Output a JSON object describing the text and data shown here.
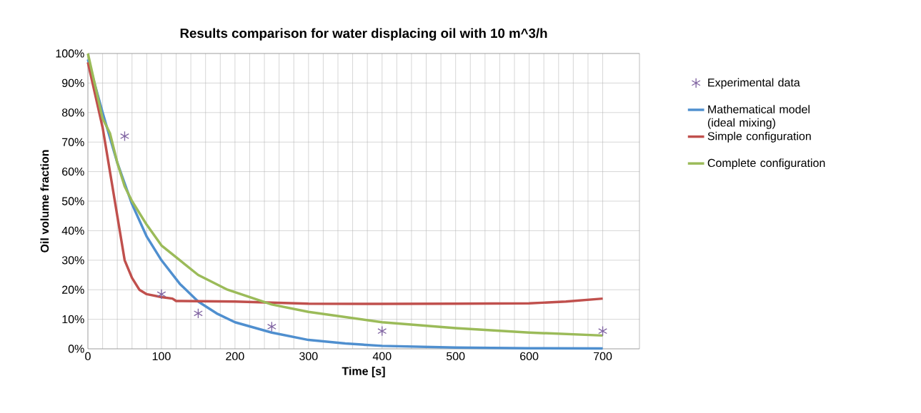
{
  "chart_data": {
    "type": "line",
    "title": "Results comparison for water displacing oil with 10 m^3/h",
    "xlabel": "Time [s]",
    "ylabel": "Oil volume fraction",
    "xlim": [
      0,
      750
    ],
    "xticks": [
      0,
      100,
      200,
      300,
      400,
      500,
      600,
      700
    ],
    "ylim": [
      0,
      100
    ],
    "yticks": [
      {
        "value": 0,
        "label": "0%"
      },
      {
        "value": 10,
        "label": "10%"
      },
      {
        "value": 20,
        "label": "20%"
      },
      {
        "value": 30,
        "label": "30%"
      },
      {
        "value": 40,
        "label": "40%"
      },
      {
        "value": 50,
        "label": "50%"
      },
      {
        "value": 60,
        "label": "60%"
      },
      {
        "value": 70,
        "label": "70%"
      },
      {
        "value": 80,
        "label": "80%"
      },
      {
        "value": 90,
        "label": "90%"
      },
      {
        "value": 100,
        "label": "100%"
      }
    ],
    "grid": true,
    "legend": "right",
    "series": [
      {
        "name": "Experimental data",
        "type": "scatter",
        "marker": "cross",
        "color": "#8064a2",
        "x": [
          50,
          100,
          150,
          250,
          400,
          700
        ],
        "values": [
          72,
          18.5,
          12,
          7.5,
          6,
          6
        ]
      },
      {
        "name": "Mathematical model (ideal mixing)",
        "color": "#4f8fcf",
        "x": [
          0,
          20,
          40,
          60,
          80,
          100,
          125,
          150,
          175,
          200,
          250,
          300,
          350,
          400,
          500,
          600,
          700
        ],
        "values": [
          98,
          80,
          63,
          49,
          38,
          30,
          22,
          16,
          12,
          9,
          5.5,
          3,
          1.8,
          1,
          0.4,
          0.2,
          0.1
        ]
      },
      {
        "name": "Simple configuration",
        "color": "#c0504d",
        "x": [
          0,
          20,
          40,
          50,
          60,
          70,
          80,
          100,
          115,
          120,
          200,
          300,
          400,
          500,
          600,
          650,
          700
        ],
        "values": [
          97,
          75,
          45,
          30,
          24,
          20,
          18.5,
          17.5,
          17,
          16.2,
          16,
          15.3,
          15.2,
          15.3,
          15.4,
          16,
          17
        ]
      },
      {
        "name": "Complete configuration",
        "color": "#9bbb59",
        "x": [
          0,
          20,
          30,
          40,
          50,
          60,
          80,
          100,
          150,
          190,
          250,
          300,
          400,
          500,
          600,
          700
        ],
        "values": [
          100,
          78,
          73,
          63,
          55,
          50,
          42,
          35,
          25,
          20,
          15,
          12.5,
          9,
          7,
          5.5,
          4.5
        ]
      }
    ]
  }
}
